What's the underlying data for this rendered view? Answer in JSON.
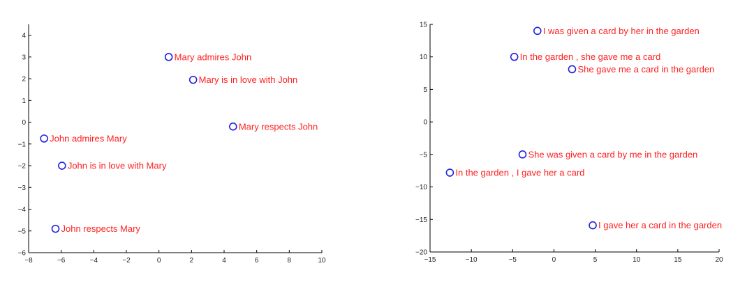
{
  "chart_data": [
    {
      "type": "scatter",
      "xlim": [
        -8,
        10
      ],
      "ylim": [
        -6,
        4.5
      ],
      "x_ticks": [
        "−8",
        "−6",
        "−4",
        "−2",
        "0",
        "2",
        "4",
        "6",
        "8",
        "10"
      ],
      "y_ticks": [
        "−6",
        "−5",
        "−4",
        "−3",
        "−2",
        "−1",
        "0",
        "1",
        "2",
        "3",
        "4"
      ],
      "x_tick_values": [
        -8,
        -6,
        -4,
        -2,
        0,
        2,
        4,
        6,
        8,
        10
      ],
      "y_tick_values": [
        -6,
        -5,
        -4,
        -3,
        -2,
        -1,
        0,
        1,
        2,
        3,
        4
      ],
      "grid": false,
      "marker_color": "#2222dd",
      "label_color": "#ff2020",
      "points": [
        {
          "x": 0.6,
          "y": 3.0,
          "label": "Mary admires John"
        },
        {
          "x": 2.1,
          "y": 1.95,
          "label": "Mary is in love with John"
        },
        {
          "x": 4.55,
          "y": -0.2,
          "label": "Mary respects John"
        },
        {
          "x": -7.05,
          "y": -0.75,
          "label": "John admires Mary"
        },
        {
          "x": -5.95,
          "y": -2.0,
          "label": "John is in love with Mary"
        },
        {
          "x": -6.35,
          "y": -4.9,
          "label": "John respects Mary"
        }
      ]
    },
    {
      "type": "scatter",
      "xlim": [
        -15,
        20
      ],
      "ylim": [
        -20,
        15
      ],
      "x_ticks": [
        "−15",
        "−10",
        "−5",
        "0",
        "5",
        "10",
        "15",
        "20"
      ],
      "y_ticks": [
        "−20",
        "−15",
        "−10",
        "−5",
        "0",
        "5",
        "10",
        "15"
      ],
      "x_tick_values": [
        -15,
        -10,
        -5,
        0,
        5,
        10,
        15,
        20
      ],
      "y_tick_values": [
        -20,
        -15,
        -10,
        -5,
        0,
        5,
        10,
        15
      ],
      "grid": false,
      "marker_color": "#2222dd",
      "label_color": "#ff2020",
      "points": [
        {
          "x": -2.0,
          "y": 14.0,
          "label": "I was given a card by her in the garden"
        },
        {
          "x": -4.8,
          "y": 10.0,
          "label": "In the garden , she gave me a card"
        },
        {
          "x": 2.2,
          "y": 8.1,
          "label": "She gave me a card in the garden"
        },
        {
          "x": -3.8,
          "y": -5.0,
          "label": "She was given a card by me in the garden"
        },
        {
          "x": -12.6,
          "y": -7.8,
          "label": "In the garden , I gave her a card"
        },
        {
          "x": 4.7,
          "y": -15.9,
          "label": "I gave her a card in the garden"
        }
      ]
    }
  ]
}
